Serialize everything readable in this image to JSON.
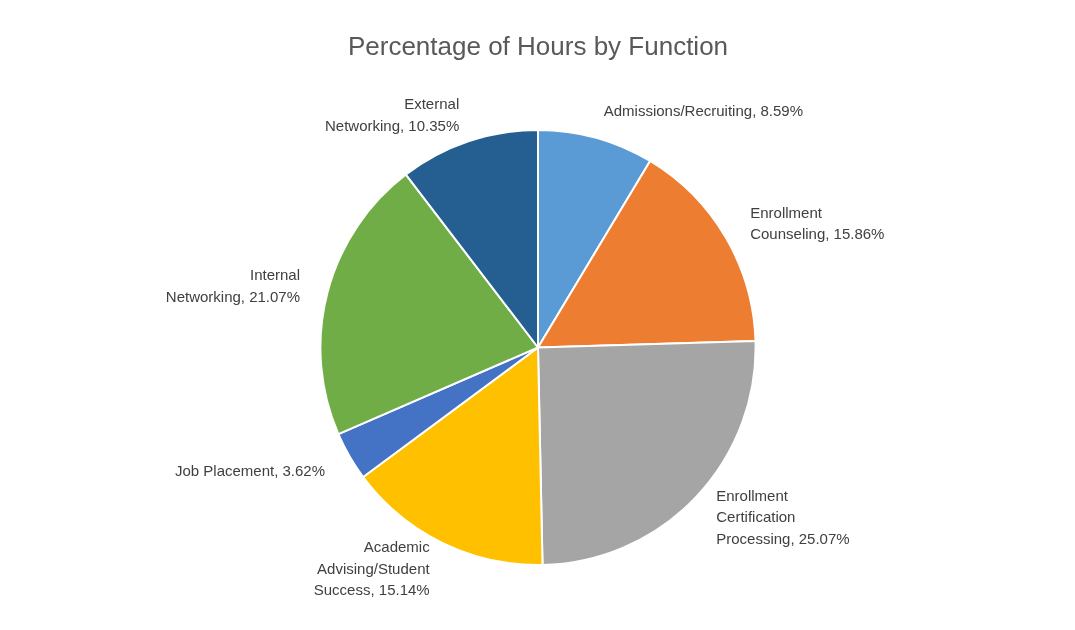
{
  "chart_data": {
    "type": "pie",
    "title": "Percentage of Hours by Function",
    "categories": [
      "Admissions/Recruiting",
      "Enrollment Counseling",
      "Enrollment Certification Processing",
      "Academic Advising/Student Success",
      "Job Placement",
      "Internal Networking",
      "External Networking"
    ],
    "values": [
      8.59,
      15.86,
      25.07,
      15.14,
      3.62,
      21.07,
      10.35
    ],
    "value_labels": [
      "8.59%",
      "15.86%",
      "25.07%",
      "15.14%",
      "3.62%",
      "21.07%",
      "10.35%"
    ],
    "colors": [
      "#5b9bd5",
      "#ed7d31",
      "#a5a5a5",
      "#ffc000",
      "#4472c4",
      "#70ad47",
      "#255e91"
    ]
  }
}
